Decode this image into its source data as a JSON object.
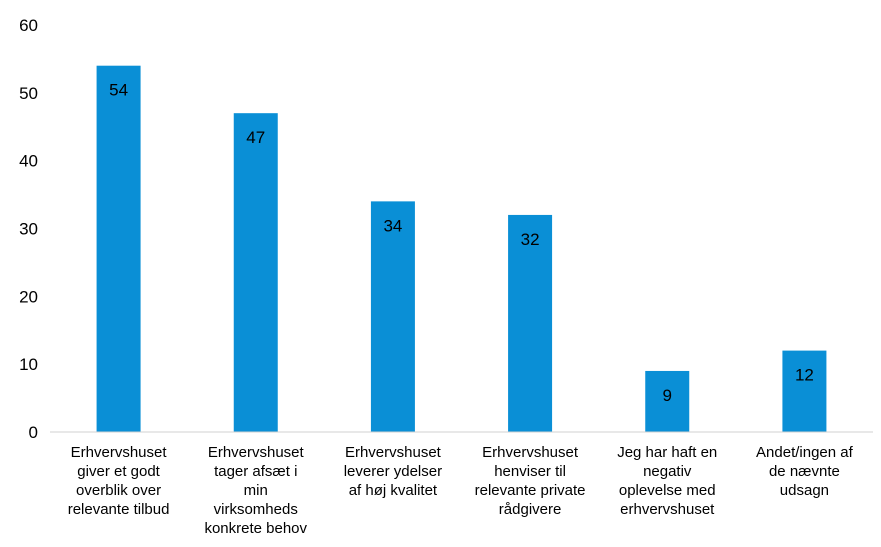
{
  "chart_data": {
    "type": "bar",
    "title": "",
    "xlabel": "",
    "ylabel": "",
    "ylim": [
      0,
      60
    ],
    "yticks": [
      0,
      10,
      20,
      30,
      40,
      50,
      60
    ],
    "grid": false,
    "legend": "none",
    "bar_color": "#0a8fd6",
    "categories": [
      [
        "Erhvervshuset",
        "giver et godt",
        "overblik over",
        "relevante tilbud"
      ],
      [
        "Erhvervshuset",
        "tager afsæt i",
        "min",
        "virksomheds",
        "konkrete behov"
      ],
      [
        "Erhvervshuset",
        "leverer ydelser",
        "af høj kvalitet"
      ],
      [
        "Erhvervshuset",
        "henviser til",
        "relevante private",
        "rådgivere"
      ],
      [
        "Jeg har haft en",
        "negativ",
        "oplevelse med",
        "erhvervshuset"
      ],
      [
        "Andet/ingen af",
        "de nævnte",
        "udsagn"
      ]
    ],
    "values": [
      54,
      47,
      34,
      32,
      9,
      12
    ],
    "value_labels": [
      "54",
      "47",
      "34",
      "32",
      "9",
      "12"
    ]
  }
}
